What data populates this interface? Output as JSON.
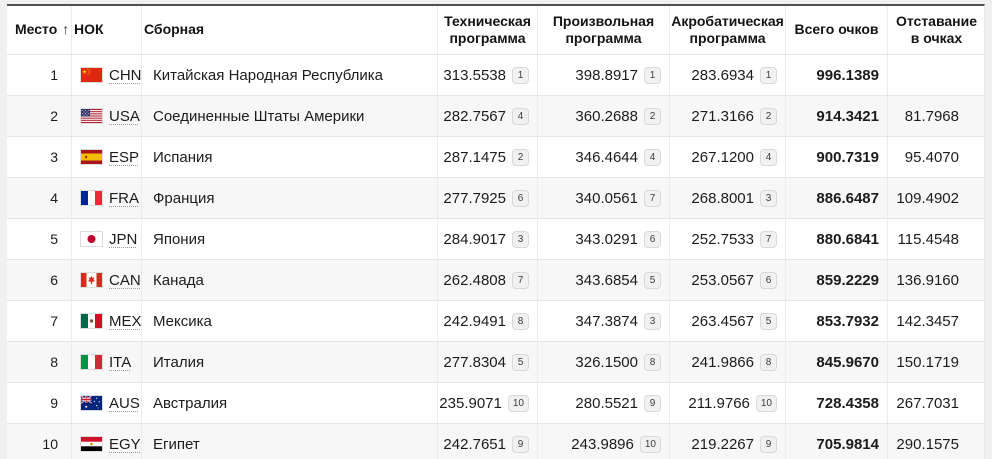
{
  "table": {
    "sort_indicator": "↑",
    "columns": [
      {
        "id": "place",
        "label": "Место"
      },
      {
        "id": "noc",
        "label": "НОК"
      },
      {
        "id": "team",
        "label": "Сборная"
      },
      {
        "id": "tech",
        "label": "Техническая программа"
      },
      {
        "id": "free",
        "label": "Произвольная программа"
      },
      {
        "id": "acro",
        "label": "Акробатическая программа"
      },
      {
        "id": "total",
        "label": "Всего очков"
      },
      {
        "id": "behind",
        "label": "Отставание в очках"
      }
    ],
    "rows": [
      {
        "place": "1",
        "noc": "CHN",
        "team": "Китайская Народная Республика",
        "tech": "313.5538",
        "tech_rank": "1",
        "free": "398.8917",
        "free_rank": "1",
        "acro": "283.6934",
        "acro_rank": "1",
        "total": "996.1389",
        "behind": ""
      },
      {
        "place": "2",
        "noc": "USA",
        "team": "Соединенные Штаты Америки",
        "tech": "282.7567",
        "tech_rank": "4",
        "free": "360.2688",
        "free_rank": "2",
        "acro": "271.3166",
        "acro_rank": "2",
        "total": "914.3421",
        "behind": "81.7968"
      },
      {
        "place": "3",
        "noc": "ESP",
        "team": "Испания",
        "tech": "287.1475",
        "tech_rank": "2",
        "free": "346.4644",
        "free_rank": "4",
        "acro": "267.1200",
        "acro_rank": "4",
        "total": "900.7319",
        "behind": "95.4070"
      },
      {
        "place": "4",
        "noc": "FRA",
        "team": "Франция",
        "tech": "277.7925",
        "tech_rank": "6",
        "free": "340.0561",
        "free_rank": "7",
        "acro": "268.8001",
        "acro_rank": "3",
        "total": "886.6487",
        "behind": "109.4902"
      },
      {
        "place": "5",
        "noc": "JPN",
        "team": "Япония",
        "tech": "284.9017",
        "tech_rank": "3",
        "free": "343.0291",
        "free_rank": "6",
        "acro": "252.7533",
        "acro_rank": "7",
        "total": "880.6841",
        "behind": "115.4548"
      },
      {
        "place": "6",
        "noc": "CAN",
        "team": "Канада",
        "tech": "262.4808",
        "tech_rank": "7",
        "free": "343.6854",
        "free_rank": "5",
        "acro": "253.0567",
        "acro_rank": "6",
        "total": "859.2229",
        "behind": "136.9160"
      },
      {
        "place": "7",
        "noc": "MEX",
        "team": "Мексика",
        "tech": "242.9491",
        "tech_rank": "8",
        "free": "347.3874",
        "free_rank": "3",
        "acro": "263.4567",
        "acro_rank": "5",
        "total": "853.7932",
        "behind": "142.3457"
      },
      {
        "place": "8",
        "noc": "ITA",
        "team": "Италия",
        "tech": "277.8304",
        "tech_rank": "5",
        "free": "326.1500",
        "free_rank": "8",
        "acro": "241.9866",
        "acro_rank": "8",
        "total": "845.9670",
        "behind": "150.1719"
      },
      {
        "place": "9",
        "noc": "AUS",
        "team": "Австралия",
        "tech": "235.9071",
        "tech_rank": "10",
        "free": "280.5521",
        "free_rank": "9",
        "acro": "211.9766",
        "acro_rank": "10",
        "total": "728.4358",
        "behind": "267.7031"
      },
      {
        "place": "10",
        "noc": "EGY",
        "team": "Египет",
        "tech": "242.7651",
        "tech_rank": "9",
        "free": "243.9896",
        "free_rank": "10",
        "acro": "219.2267",
        "acro_rank": "9",
        "total": "705.9814",
        "behind": "290.1575"
      }
    ]
  },
  "colors": {
    "top_border": "#515151",
    "row_alt_background": "#f7f7f7",
    "page_background": "#f0f0f0",
    "grid_line": "#e6e6e6",
    "badge_background": "#f1f1f1",
    "badge_border": "#d9d9d9",
    "text": "#1c1c1c"
  }
}
